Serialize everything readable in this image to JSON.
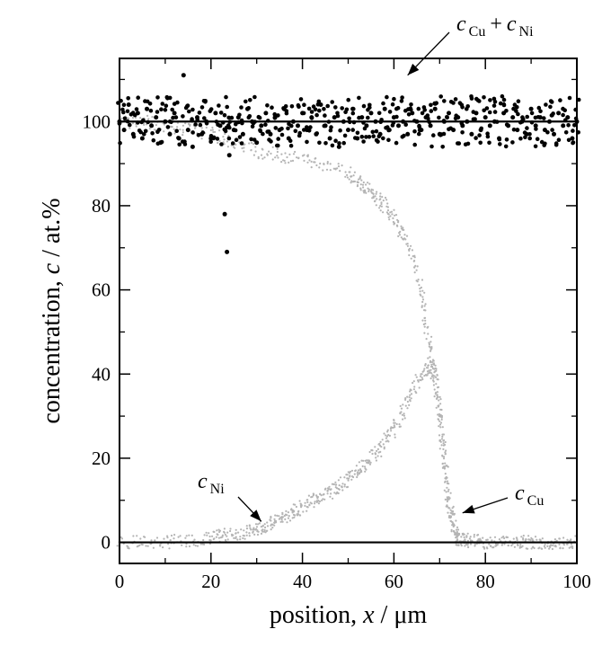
{
  "chart_data": {
    "type": "scatter",
    "title": "",
    "xlabel": {
      "prefix": "position, ",
      "var": "x",
      "suffix": " / μm"
    },
    "ylabel": {
      "prefix": "concentration, ",
      "var": "c",
      "suffix": " / at.%"
    },
    "xlim": [
      0,
      100
    ],
    "ylim": [
      -5,
      115
    ],
    "x_ticks": [
      0,
      20,
      40,
      60,
      80,
      100
    ],
    "y_ticks": [
      0,
      20,
      40,
      60,
      80,
      100
    ],
    "x_tick_labels": [
      "0",
      "20",
      "40",
      "60",
      "80",
      "100"
    ],
    "y_tick_labels": [
      "0",
      "20",
      "40",
      "60",
      "80",
      "100"
    ],
    "reference_lines": [
      0,
      100
    ],
    "series": [
      {
        "name": "c_Cu + c_Ni",
        "color": "#000000",
        "marker": "filled-circle",
        "description": "sum, scattered around 100 at.%",
        "x": [
          0,
          1,
          2,
          3,
          4,
          5,
          6,
          7,
          8,
          9,
          10,
          11,
          12,
          13,
          14,
          15,
          16,
          17,
          18,
          19,
          20,
          21,
          22,
          23,
          23.5,
          24,
          25,
          26,
          27,
          28,
          29,
          30,
          31,
          32,
          33,
          34,
          35,
          36,
          37,
          38,
          39,
          40,
          41,
          42,
          43,
          44,
          45,
          46,
          47,
          48,
          49,
          50,
          51,
          52,
          53,
          54,
          55,
          56,
          57,
          58,
          59,
          60,
          61,
          62,
          63,
          64,
          65,
          66,
          67,
          68,
          69,
          70,
          71,
          72,
          73,
          74,
          75,
          76,
          77,
          78,
          79,
          80,
          81,
          82,
          83,
          84,
          85,
          86,
          87,
          88,
          89,
          90,
          91,
          92,
          93,
          94,
          95,
          96,
          97,
          98,
          99,
          100
        ],
        "y": [
          100,
          98,
          104,
          97,
          102,
          96,
          103,
          99,
          101,
          95,
          100,
          97,
          102,
          96,
          111,
          98,
          94,
          101,
          97,
          100,
          96,
          102,
          99,
          78,
          69,
          92,
          98,
          101,
          97,
          103,
          100,
          95,
          99,
          102,
          97,
          101,
          98,
          103,
          96,
          100,
          99,
          102,
          98,
          101,
          97,
          104,
          99,
          96,
          101,
          94,
          100,
          98,
          103,
          96,
          101,
          99,
          102,
          100,
          97,
          103,
          98,
          101,
          99,
          100,
          97,
          102,
          100,
          98,
          101,
          99,
          103,
          97,
          100,
          102,
          98,
          101,
          99,
          100,
          97,
          102,
          98,
          101,
          99,
          100,
          96,
          102,
          99,
          101,
          98,
          100,
          97,
          103,
          99,
          101,
          98,
          100,
          97,
          102,
          99,
          101,
          96,
          100
        ]
      },
      {
        "name": "c_Ni",
        "color": "#b4b4b4",
        "marker": "small-dot",
        "description": "Ni profile: ~0 left of 20 µm, rises to ~42 at 68 µm, drops to ~0 by 74 µm",
        "x": [
          0,
          5,
          10,
          15,
          20,
          22,
          25,
          28,
          30,
          32,
          34,
          36,
          38,
          40,
          42,
          44,
          46,
          48,
          50,
          52,
          54,
          56,
          58,
          60,
          62,
          64,
          66,
          68,
          69,
          70,
          71,
          72,
          73,
          74,
          76,
          80,
          85,
          90,
          95,
          100
        ],
        "y": [
          0,
          0,
          0,
          0.5,
          1,
          1.5,
          2,
          2.5,
          3,
          4,
          5,
          6,
          7,
          8.5,
          10,
          11,
          12,
          13.5,
          15,
          17,
          19,
          21,
          24,
          27,
          31,
          36,
          40,
          42,
          41,
          30,
          20,
          10,
          4,
          1,
          0.5,
          0,
          0,
          0,
          0,
          0
        ]
      },
      {
        "name": "c_Cu",
        "color": "#b4b4b4",
        "marker": "small-dot",
        "description": "Cu profile: high (~90-100) left, falls to ~60 at 66 µm, steep to ~0 at 74 µm",
        "x": [
          0,
          5,
          10,
          15,
          20,
          25,
          30,
          35,
          40,
          45,
          50,
          52,
          54,
          56,
          58,
          60,
          62,
          64,
          66,
          67,
          68,
          69,
          70,
          71,
          72,
          73,
          74,
          76,
          80,
          85,
          90,
          95,
          100
        ],
        "y": [
          100,
          100,
          99,
          98,
          97,
          95,
          93,
          92,
          91,
          90,
          88,
          86,
          84,
          82,
          80,
          77,
          73,
          68,
          60,
          52,
          45,
          38,
          30,
          20,
          10,
          4,
          1,
          0.5,
          0,
          0,
          0,
          0,
          0
        ]
      }
    ],
    "annotations": [
      {
        "label": "c_Cu + c_Ni",
        "c": "c",
        "sub1": "Cu",
        "plus": "+",
        "c2": "c",
        "sub2": "Ni",
        "points_to": [
          63,
          111
        ]
      },
      {
        "label": "c_Ni",
        "c": "c",
        "sub": "Ni",
        "points_to": [
          31,
          5
        ]
      },
      {
        "label": "c_Cu",
        "c": "c",
        "sub": "Cu",
        "points_to": [
          75,
          7
        ]
      }
    ]
  }
}
